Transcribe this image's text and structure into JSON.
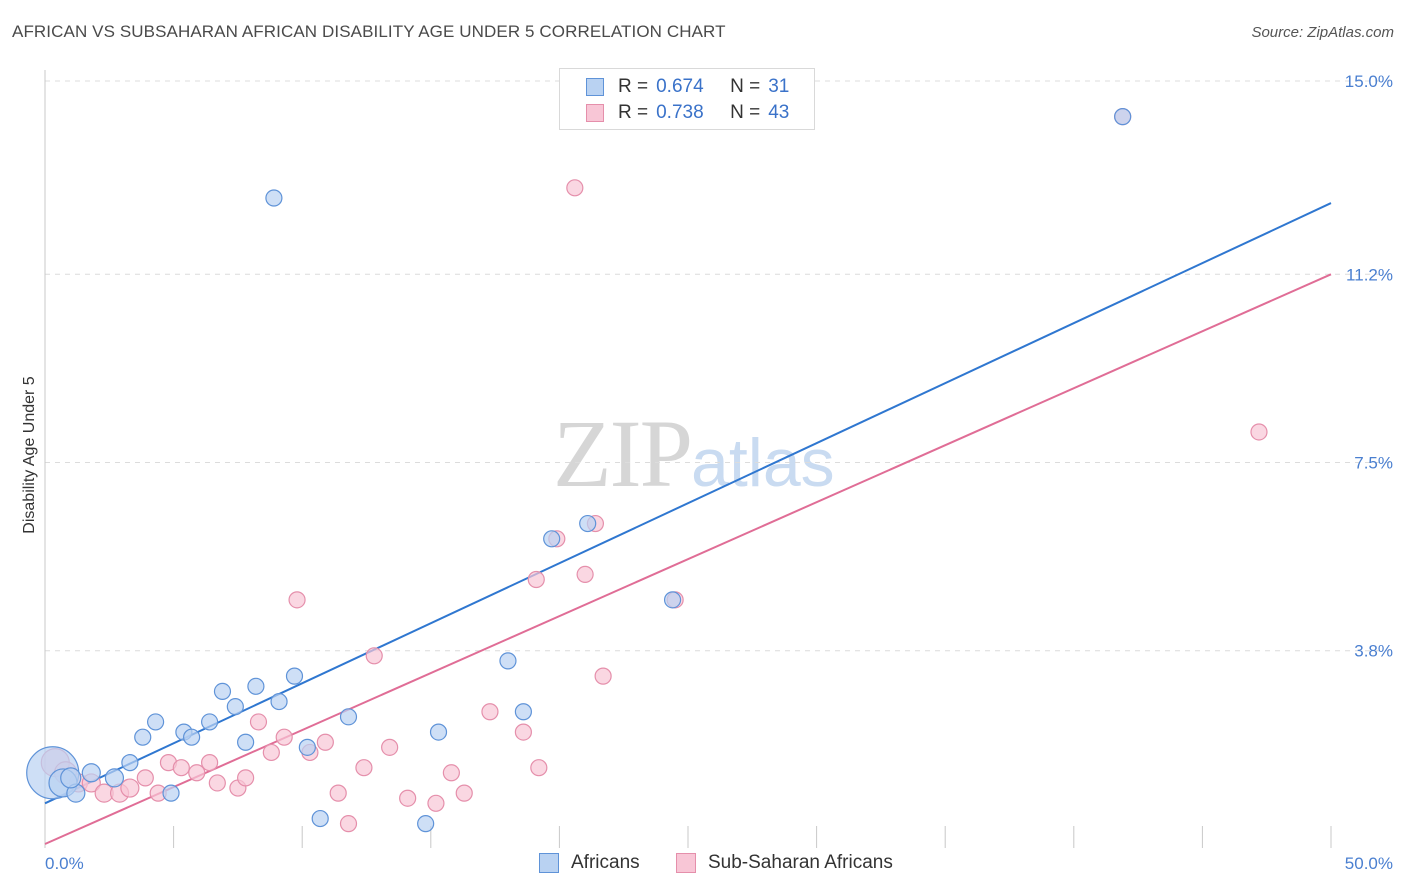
{
  "header": {
    "title": "AFRICAN VS SUBSAHARAN AFRICAN DISABILITY AGE UNDER 5 CORRELATION CHART",
    "source": "Source: ZipAtlas.com"
  },
  "watermark": {
    "zip": "ZIP",
    "atlas": "atlas"
  },
  "legend_top": {
    "rows": [
      {
        "r_label": "R =",
        "r_value": "0.674",
        "n_label": "N =",
        "n_value": "31"
      },
      {
        "r_label": "R =",
        "r_value": "0.738",
        "n_label": "N =",
        "n_value": "43"
      }
    ]
  },
  "legend_bottom": {
    "items": [
      {
        "label": "Africans"
      },
      {
        "label": "Sub-Saharan Africans"
      }
    ]
  },
  "colors": {
    "africans_fill": "#b9d2f2",
    "africans_stroke": "#5f93d8",
    "africans_line": "#2f77d0",
    "subsaharan_fill": "#f8c6d6",
    "subsaharan_stroke": "#e58fab",
    "subsaharan_line": "#e06d96",
    "grid": "#dcdcdc",
    "tick_text": "#4a7fd0"
  },
  "chart_data": {
    "type": "scatter",
    "title": "AFRICAN VS SUBSAHARAN AFRICAN DISABILITY AGE UNDER 5 CORRELATION CHART",
    "xlabel": "",
    "ylabel": "Disability Age Under 5",
    "xlim": [
      0,
      50
    ],
    "ylim": [
      0,
      15.4
    ],
    "x_tick_labels": [
      "0.0%",
      "50.0%"
    ],
    "y_ticks": [
      3.8,
      7.5,
      11.2,
      15.0
    ],
    "y_tick_labels": [
      "3.8%",
      "7.5%",
      "11.2%",
      "15.0%"
    ],
    "grid": true,
    "legend_placement": "top-center",
    "series": [
      {
        "name": "Africans",
        "R": 0.674,
        "N": 31,
        "trend": {
          "x": [
            0,
            50
          ],
          "y": [
            0.8,
            12.6
          ]
        },
        "points": [
          {
            "x": 0.3,
            "y": 1.4,
            "s": 26
          },
          {
            "x": 0.7,
            "y": 1.2,
            "s": 14
          },
          {
            "x": 1.2,
            "y": 1.0,
            "s": 9
          },
          {
            "x": 1.8,
            "y": 1.4,
            "s": 9
          },
          {
            "x": 2.7,
            "y": 1.3,
            "s": 9
          },
          {
            "x": 3.3,
            "y": 1.6,
            "s": 8
          },
          {
            "x": 3.8,
            "y": 2.1,
            "s": 8
          },
          {
            "x": 4.3,
            "y": 2.4,
            "s": 8
          },
          {
            "x": 4.9,
            "y": 1.0,
            "s": 8
          },
          {
            "x": 5.4,
            "y": 2.2,
            "s": 8
          },
          {
            "x": 5.7,
            "y": 2.1,
            "s": 8
          },
          {
            "x": 6.4,
            "y": 2.4,
            "s": 8
          },
          {
            "x": 6.9,
            "y": 3.0,
            "s": 8
          },
          {
            "x": 7.4,
            "y": 2.7,
            "s": 8
          },
          {
            "x": 7.8,
            "y": 2.0,
            "s": 8
          },
          {
            "x": 8.2,
            "y": 3.1,
            "s": 8
          },
          {
            "x": 9.1,
            "y": 2.8,
            "s": 8
          },
          {
            "x": 9.7,
            "y": 3.3,
            "s": 8
          },
          {
            "x": 10.2,
            "y": 1.9,
            "s": 8
          },
          {
            "x": 10.7,
            "y": 0.5,
            "s": 8
          },
          {
            "x": 11.8,
            "y": 2.5,
            "s": 8
          },
          {
            "x": 8.9,
            "y": 12.7,
            "s": 8
          },
          {
            "x": 14.8,
            "y": 0.4,
            "s": 8
          },
          {
            "x": 15.3,
            "y": 2.2,
            "s": 8
          },
          {
            "x": 18.0,
            "y": 3.6,
            "s": 8
          },
          {
            "x": 18.6,
            "y": 2.6,
            "s": 8
          },
          {
            "x": 19.7,
            "y": 6.0,
            "s": 8
          },
          {
            "x": 21.1,
            "y": 6.3,
            "s": 8
          },
          {
            "x": 24.4,
            "y": 4.8,
            "s": 8
          },
          {
            "x": 41.9,
            "y": 14.3,
            "s": 8
          },
          {
            "x": 1.0,
            "y": 1.3,
            "s": 10
          }
        ]
      },
      {
        "name": "Sub-Saharan Africans",
        "R": 0.738,
        "N": 43,
        "trend": {
          "x": [
            0,
            50
          ],
          "y": [
            0.0,
            11.2
          ]
        },
        "points": [
          {
            "x": 0.4,
            "y": 1.6,
            "s": 14
          },
          {
            "x": 0.8,
            "y": 1.4,
            "s": 11
          },
          {
            "x": 1.3,
            "y": 1.2,
            "s": 9
          },
          {
            "x": 1.8,
            "y": 1.2,
            "s": 9
          },
          {
            "x": 2.3,
            "y": 1.0,
            "s": 9
          },
          {
            "x": 2.9,
            "y": 1.0,
            "s": 9
          },
          {
            "x": 3.3,
            "y": 1.1,
            "s": 9
          },
          {
            "x": 3.9,
            "y": 1.3,
            "s": 8
          },
          {
            "x": 4.4,
            "y": 1.0,
            "s": 8
          },
          {
            "x": 4.8,
            "y": 1.6,
            "s": 8
          },
          {
            "x": 5.3,
            "y": 1.5,
            "s": 8
          },
          {
            "x": 5.9,
            "y": 1.4,
            "s": 8
          },
          {
            "x": 6.4,
            "y": 1.6,
            "s": 8
          },
          {
            "x": 6.7,
            "y": 1.2,
            "s": 8
          },
          {
            "x": 7.5,
            "y": 1.1,
            "s": 8
          },
          {
            "x": 7.8,
            "y": 1.3,
            "s": 8
          },
          {
            "x": 8.3,
            "y": 2.4,
            "s": 8
          },
          {
            "x": 8.8,
            "y": 1.8,
            "s": 8
          },
          {
            "x": 9.3,
            "y": 2.1,
            "s": 8
          },
          {
            "x": 9.8,
            "y": 4.8,
            "s": 8
          },
          {
            "x": 10.3,
            "y": 1.8,
            "s": 8
          },
          {
            "x": 10.9,
            "y": 2.0,
            "s": 8
          },
          {
            "x": 11.4,
            "y": 1.0,
            "s": 8
          },
          {
            "x": 11.8,
            "y": 0.4,
            "s": 8
          },
          {
            "x": 12.4,
            "y": 1.5,
            "s": 8
          },
          {
            "x": 12.8,
            "y": 3.7,
            "s": 8
          },
          {
            "x": 13.4,
            "y": 1.9,
            "s": 8
          },
          {
            "x": 14.1,
            "y": 0.9,
            "s": 8
          },
          {
            "x": 15.2,
            "y": 0.8,
            "s": 8
          },
          {
            "x": 15.8,
            "y": 1.4,
            "s": 8
          },
          {
            "x": 16.3,
            "y": 1.0,
            "s": 8
          },
          {
            "x": 17.3,
            "y": 2.6,
            "s": 8
          },
          {
            "x": 18.6,
            "y": 2.2,
            "s": 8
          },
          {
            "x": 19.2,
            "y": 1.5,
            "s": 8
          },
          {
            "x": 19.1,
            "y": 5.2,
            "s": 8
          },
          {
            "x": 19.9,
            "y": 6.0,
            "s": 8
          },
          {
            "x": 20.6,
            "y": 12.9,
            "s": 8
          },
          {
            "x": 21.0,
            "y": 5.3,
            "s": 8
          },
          {
            "x": 21.4,
            "y": 6.3,
            "s": 8
          },
          {
            "x": 21.7,
            "y": 3.3,
            "s": 8
          },
          {
            "x": 24.5,
            "y": 4.8,
            "s": 8
          },
          {
            "x": 41.9,
            "y": 14.3,
            "s": 8
          },
          {
            "x": 47.2,
            "y": 8.1,
            "s": 8
          }
        ]
      }
    ]
  }
}
